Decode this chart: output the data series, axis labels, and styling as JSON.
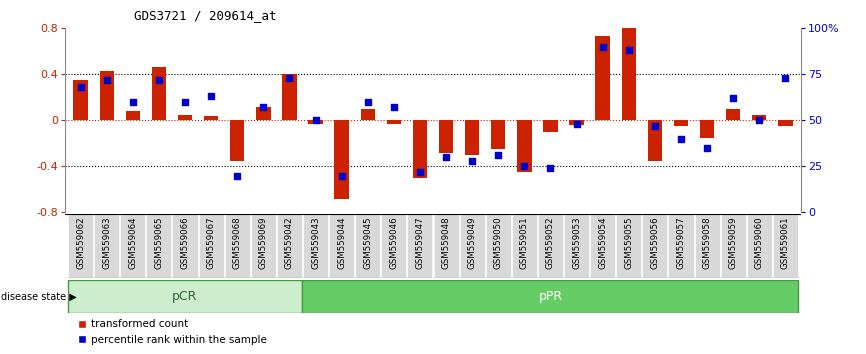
{
  "title": "GDS3721 / 209614_at",
  "samples": [
    "GSM559062",
    "GSM559063",
    "GSM559064",
    "GSM559065",
    "GSM559066",
    "GSM559067",
    "GSM559068",
    "GSM559069",
    "GSM559042",
    "GSM559043",
    "GSM559044",
    "GSM559045",
    "GSM559046",
    "GSM559047",
    "GSM559048",
    "GSM559049",
    "GSM559050",
    "GSM559051",
    "GSM559052",
    "GSM559053",
    "GSM559054",
    "GSM559055",
    "GSM559056",
    "GSM559057",
    "GSM559058",
    "GSM559059",
    "GSM559060",
    "GSM559061"
  ],
  "red_bars": [
    0.35,
    0.43,
    0.08,
    0.46,
    0.05,
    0.04,
    -0.35,
    0.12,
    0.4,
    -0.03,
    -0.68,
    0.1,
    -0.03,
    -0.5,
    -0.28,
    -0.3,
    -0.25,
    -0.45,
    -0.1,
    -0.04,
    0.73,
    0.8,
    -0.35,
    -0.05,
    -0.15,
    0.1,
    0.05,
    -0.05
  ],
  "blue_pcts": [
    68,
    72,
    60,
    72,
    60,
    63,
    20,
    57,
    73,
    50,
    20,
    60,
    57,
    22,
    30,
    28,
    31,
    25,
    24,
    48,
    90,
    88,
    47,
    40,
    35,
    62,
    50,
    73
  ],
  "pCR_count": 9,
  "ylim": [
    -0.8,
    0.8
  ],
  "y2lim": [
    0,
    100
  ],
  "yticks_left": [
    -0.8,
    -0.4,
    0.0,
    0.4,
    0.8
  ],
  "yticks_right": [
    0,
    25,
    50,
    75,
    100
  ],
  "bar_color": "#cc2200",
  "dot_color": "#0000cc",
  "pCR_color": "#cceecc",
  "pPR_color": "#66cc66",
  "group_label_pCR": "#336633",
  "group_label_pPR": "#226622",
  "label_bg": "#d8d8d8"
}
